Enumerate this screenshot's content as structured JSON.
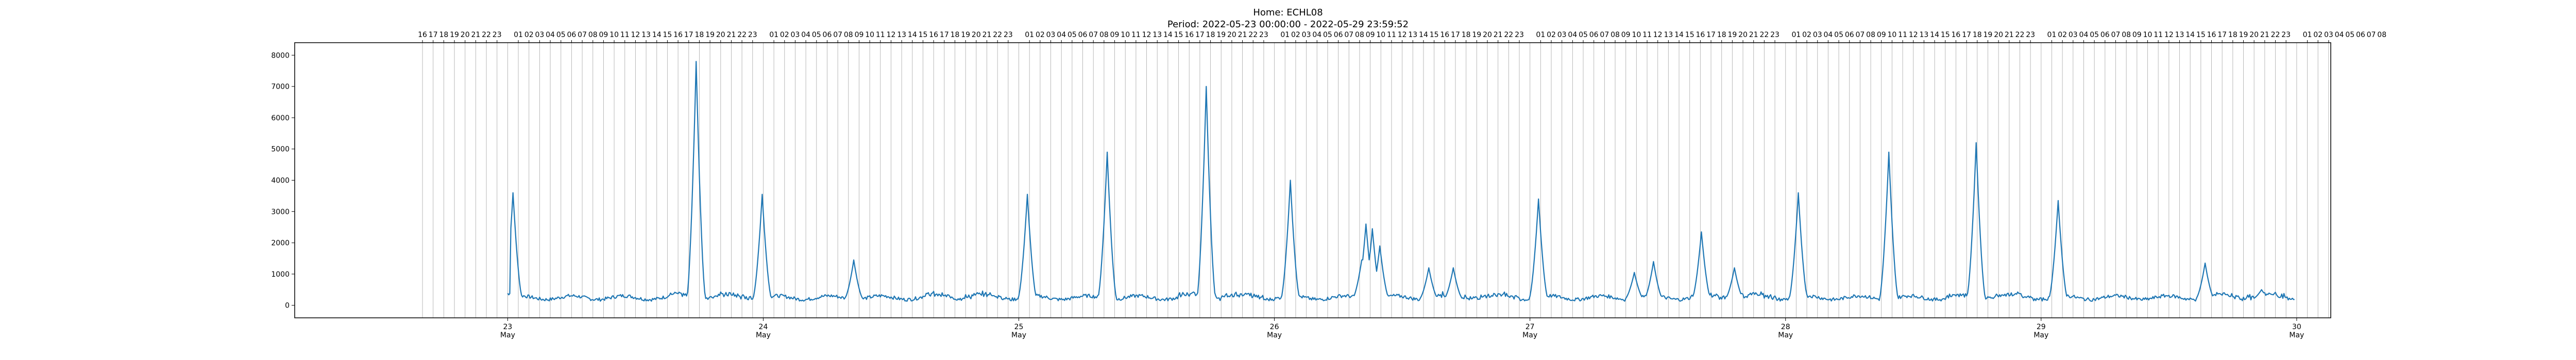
{
  "chart_data": {
    "type": "line",
    "title": "Home: ECHL08",
    "subtitle": "Period: 2022-05-23 00:00:00 - 2022-05-29 23:59:52",
    "xlabel": "",
    "ylabel": "",
    "x_unit": "hours since 2022-05-23 00:00",
    "xlim": [
      -20,
      171.2
    ],
    "ylim": [
      -400,
      8400
    ],
    "grid": "vertical lines at each hour",
    "legend": "none",
    "line_color": "#1f77b4",
    "yticks": [
      0,
      1000,
      2000,
      3000,
      4000,
      5000,
      6000,
      7000,
      8000
    ],
    "xticks_major": [
      {
        "hour": 0,
        "day": "23",
        "month": "May"
      },
      {
        "hour": 24,
        "day": "24",
        "month": "May"
      },
      {
        "hour": 48,
        "day": "25",
        "month": "May"
      },
      {
        "hour": 72,
        "day": "26",
        "month": "May"
      },
      {
        "hour": 96,
        "day": "27",
        "month": "May"
      },
      {
        "hour": 120,
        "day": "28",
        "month": "May"
      },
      {
        "hour": 144,
        "day": "29",
        "month": "May"
      },
      {
        "hour": 168,
        "day": "30",
        "month": "May"
      }
    ],
    "top_hour_labels": {
      "first_hour": -8,
      "last_hour": 176,
      "skip_hour_of_day": 0
    },
    "spikes": [
      {
        "x": 0.5,
        "y": 3600
      },
      {
        "x": 17.7,
        "y": 7800
      },
      {
        "x": 23.9,
        "y": 3550
      },
      {
        "x": 32.5,
        "y": 1450
      },
      {
        "x": 48.8,
        "y": 3550
      },
      {
        "x": 56.3,
        "y": 4900
      },
      {
        "x": 65.6,
        "y": 7000
      },
      {
        "x": 73.5,
        "y": 4000
      },
      {
        "x": 80.2,
        "y": 1450
      },
      {
        "x": 80.6,
        "y": 2600
      },
      {
        "x": 81.2,
        "y": 2450
      },
      {
        "x": 81.9,
        "y": 1900
      },
      {
        "x": 86.5,
        "y": 1200
      },
      {
        "x": 88.8,
        "y": 1200
      },
      {
        "x": 96.8,
        "y": 3400
      },
      {
        "x": 105.8,
        "y": 1050
      },
      {
        "x": 107.6,
        "y": 1400
      },
      {
        "x": 112.1,
        "y": 2350
      },
      {
        "x": 115.2,
        "y": 1200
      },
      {
        "x": 121.2,
        "y": 3600
      },
      {
        "x": 129.7,
        "y": 4900
      },
      {
        "x": 137.9,
        "y": 5200
      },
      {
        "x": 145.6,
        "y": 3350
      },
      {
        "x": 159.4,
        "y": 1350
      },
      {
        "x": 164.7,
        "y": 500
      }
    ]
  }
}
